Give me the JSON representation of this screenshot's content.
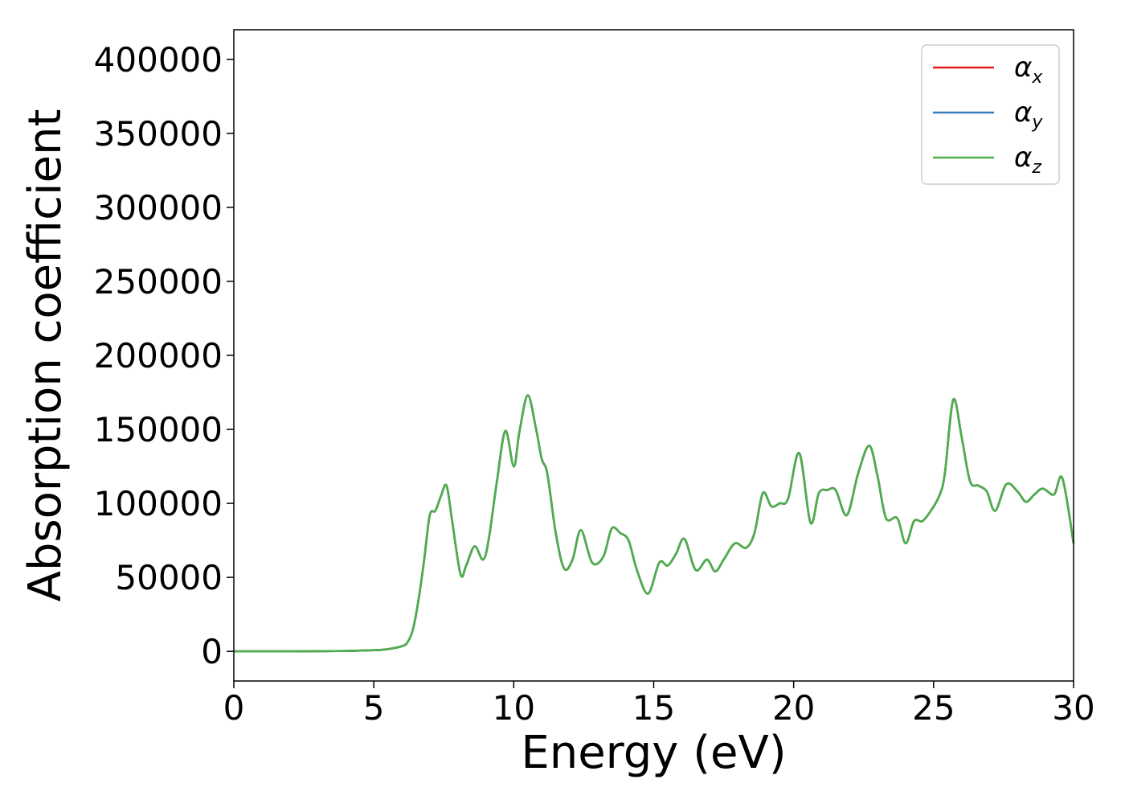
{
  "chart_data": {
    "type": "line",
    "xlabel": "Energy (eV)",
    "ylabel": "Absorption coefficient",
    "xlim": [
      0,
      30
    ],
    "ylim": [
      -20000,
      420000
    ],
    "x_ticks": [
      0,
      5,
      10,
      15,
      20,
      25,
      30
    ],
    "y_ticks": [
      0,
      50000,
      100000,
      150000,
      200000,
      250000,
      300000,
      350000,
      400000
    ],
    "x_tick_labels": [
      "0",
      "5",
      "10",
      "15",
      "20",
      "25",
      "30"
    ],
    "y_tick_labels": [
      "0",
      "50000",
      "100000",
      "150000",
      "200000",
      "250000",
      "300000",
      "350000",
      "400000"
    ],
    "grid": false,
    "legend_position": "top-right",
    "x": [
      0,
      2,
      4,
      5,
      5.5,
      6,
      6.2,
      6.4,
      6.6,
      6.8,
      7.0,
      7.2,
      7.4,
      7.6,
      7.8,
      8.1,
      8.3,
      8.6,
      8.9,
      9.1,
      9.4,
      9.7,
      10.0,
      10.2,
      10.5,
      10.8,
      11.0,
      11.2,
      11.5,
      11.8,
      12.1,
      12.4,
      12.8,
      13.2,
      13.5,
      13.8,
      14.1,
      14.4,
      14.8,
      15.2,
      15.5,
      15.8,
      16.1,
      16.5,
      16.9,
      17.2,
      17.5,
      17.9,
      18.3,
      18.6,
      18.9,
      19.2,
      19.5,
      19.8,
      20.2,
      20.6,
      20.9,
      21.2,
      21.5,
      21.9,
      22.3,
      22.7,
      23.0,
      23.3,
      23.7,
      24.0,
      24.3,
      24.6,
      24.9,
      25.2,
      25.4,
      25.7,
      26.0,
      26.3,
      26.6,
      26.9,
      27.2,
      27.6,
      28.0,
      28.3,
      28.6,
      28.9,
      29.3,
      29.6,
      30.0
    ],
    "series": [
      {
        "name": "αx",
        "color": "#e41a1c",
        "values": [
          0,
          0,
          300,
          800,
          1500,
          3500,
          6000,
          15000,
          35000,
          62000,
          92000,
          95000,
          105000,
          112000,
          88000,
          52000,
          58000,
          71000,
          62000,
          75000,
          115000,
          149000,
          125000,
          148000,
          173000,
          150000,
          130000,
          120000,
          80000,
          56000,
          62000,
          82000,
          60000,
          64000,
          83000,
          80000,
          75000,
          55000,
          39000,
          60000,
          58000,
          66000,
          76000,
          55000,
          62000,
          54000,
          62000,
          73000,
          70000,
          80000,
          107000,
          98000,
          100000,
          103000,
          134000,
          87000,
          107000,
          109000,
          109000,
          92000,
          120000,
          139000,
          118000,
          90000,
          90000,
          73000,
          88000,
          88000,
          95000,
          105000,
          120000,
          170000,
          145000,
          115000,
          112000,
          108000,
          95000,
          113000,
          108000,
          101000,
          106000,
          110000,
          106000,
          117000,
          73000
        ]
      },
      {
        "name": "αy",
        "color": "#377eb8",
        "values": [
          0,
          0,
          300,
          800,
          1500,
          3500,
          6000,
          15000,
          35000,
          62000,
          92000,
          95000,
          105000,
          112000,
          88000,
          52000,
          58000,
          71000,
          62000,
          75000,
          115000,
          149000,
          125000,
          148000,
          173000,
          150000,
          130000,
          120000,
          80000,
          56000,
          62000,
          82000,
          60000,
          64000,
          83000,
          80000,
          75000,
          55000,
          39000,
          60000,
          58000,
          66000,
          76000,
          55000,
          62000,
          54000,
          62000,
          73000,
          70000,
          80000,
          107000,
          98000,
          100000,
          103000,
          134000,
          87000,
          107000,
          109000,
          109000,
          92000,
          120000,
          139000,
          118000,
          90000,
          90000,
          73000,
          88000,
          88000,
          95000,
          105000,
          120000,
          170000,
          145000,
          115000,
          112000,
          108000,
          95000,
          113000,
          108000,
          101000,
          106000,
          110000,
          106000,
          117000,
          73000
        ]
      },
      {
        "name": "αz",
        "color": "#4daf4a",
        "values": [
          0,
          0,
          300,
          800,
          1500,
          3500,
          6000,
          15000,
          35000,
          62000,
          92000,
          95000,
          105000,
          112000,
          88000,
          52000,
          58000,
          71000,
          62000,
          75000,
          115000,
          149000,
          125000,
          148000,
          173000,
          150000,
          130000,
          120000,
          80000,
          56000,
          62000,
          82000,
          60000,
          64000,
          83000,
          80000,
          75000,
          55000,
          39000,
          60000,
          58000,
          66000,
          76000,
          55000,
          62000,
          54000,
          62000,
          73000,
          70000,
          80000,
          107000,
          98000,
          100000,
          103000,
          134000,
          87000,
          107000,
          109000,
          109000,
          92000,
          120000,
          139000,
          118000,
          90000,
          90000,
          73000,
          88000,
          88000,
          95000,
          105000,
          120000,
          170000,
          145000,
          115000,
          112000,
          108000,
          95000,
          113000,
          108000,
          101000,
          106000,
          110000,
          106000,
          117000,
          73000
        ]
      }
    ],
    "legend": [
      {
        "base": "α",
        "sub": "x",
        "color": "#e41a1c"
      },
      {
        "base": "α",
        "sub": "y",
        "color": "#377eb8"
      },
      {
        "base": "α",
        "sub": "z",
        "color": "#4daf4a"
      }
    ]
  }
}
